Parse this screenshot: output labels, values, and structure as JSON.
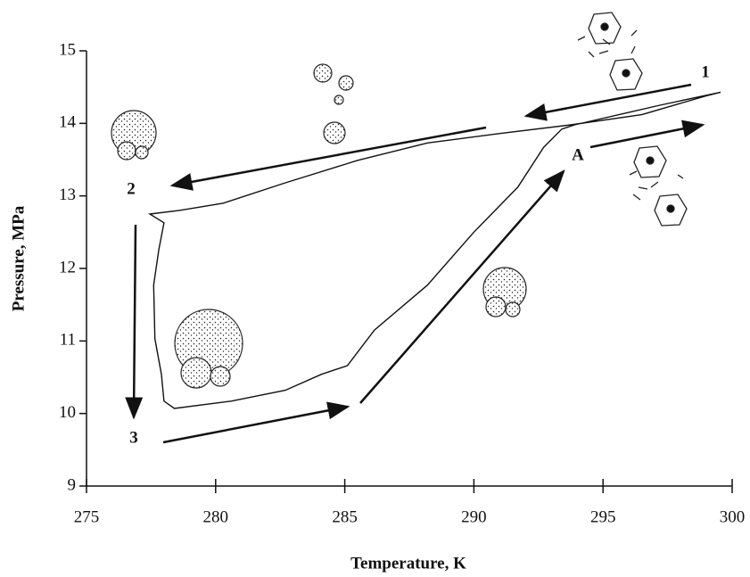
{
  "chart_data": {
    "type": "line",
    "xlabel": "Temperature, K",
    "ylabel": "Pressure, MPa",
    "xlim": [
      275,
      300
    ],
    "ylim": [
      9,
      15
    ],
    "xticks": [
      275,
      280,
      285,
      290,
      295,
      300
    ],
    "yticks": [
      9,
      10,
      11,
      12,
      13,
      14,
      15
    ],
    "annotations": [
      "1",
      "2",
      "3",
      "A"
    ],
    "x": [
      293.9,
      297.2,
      299.55,
      299.0,
      296.5,
      293.75,
      291.0,
      288.2,
      285.5,
      282.7,
      280.3,
      278.6,
      277.45,
      278.0,
      277.8,
      277.6,
      277.65,
      277.9,
      278.0,
      278.4,
      280.6,
      282.7,
      284.1,
      285.1,
      286.15,
      288.2,
      290.0,
      291.7,
      292.7,
      293.4,
      293.9
    ],
    "series": [
      {
        "color": "#111111",
        "values": [
          13.98,
          14.25,
          14.43,
          14.38,
          14.12,
          13.98,
          13.86,
          13.73,
          13.49,
          13.18,
          12.9,
          12.8,
          12.75,
          12.63,
          12.26,
          11.77,
          11.03,
          10.54,
          10.17,
          10.07,
          10.17,
          10.32,
          10.54,
          10.66,
          11.15,
          11.77,
          12.5,
          13.12,
          13.67,
          13.92,
          13.98
        ]
      }
    ]
  }
}
